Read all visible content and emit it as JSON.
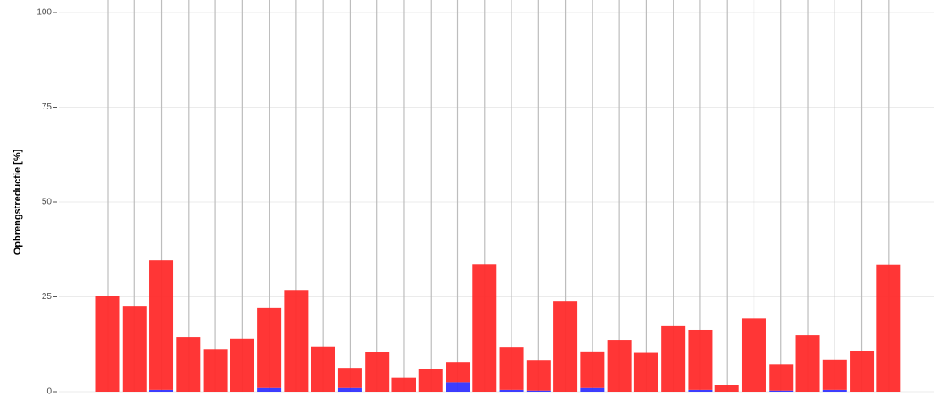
{
  "chart_data": {
    "type": "stacked_bar",
    "y_label": "Opbrengstreductie [%]",
    "categories": [
      null,
      null,
      null,
      null,
      null,
      null,
      null,
      null,
      null,
      null,
      null,
      null,
      null,
      null,
      null,
      null,
      null,
      null,
      null,
      null,
      null,
      null,
      null,
      null,
      null,
      null,
      null,
      null,
      null,
      null
    ],
    "series": [
      {
        "color": "#3333ff",
        "values": [
          0,
          0,
          0.5,
          0,
          0,
          0,
          1,
          0,
          0,
          1,
          0,
          0,
          0,
          2.5,
          0,
          0.5,
          0.3,
          0,
          1,
          0,
          0,
          0,
          0.5,
          0,
          0,
          0.3,
          0,
          0.5,
          0,
          0
        ]
      },
      {
        "color": "#ff2b2b",
        "values": [
          25.3,
          22.5,
          34.2,
          14.3,
          11.2,
          13.9,
          21.1,
          26.7,
          11.8,
          5.3,
          10.4,
          3.6,
          5.9,
          5.2,
          33.5,
          11.2,
          8.1,
          23.9,
          9.6,
          13.6,
          10.2,
          17.4,
          15.7,
          1.7,
          19.4,
          6.9,
          15.0,
          8.0,
          10.8,
          33.4
        ]
      }
    ],
    "ylim": [
      0,
      100
    ],
    "yticks": [
      0,
      25,
      50,
      75,
      100
    ],
    "grid": true
  }
}
